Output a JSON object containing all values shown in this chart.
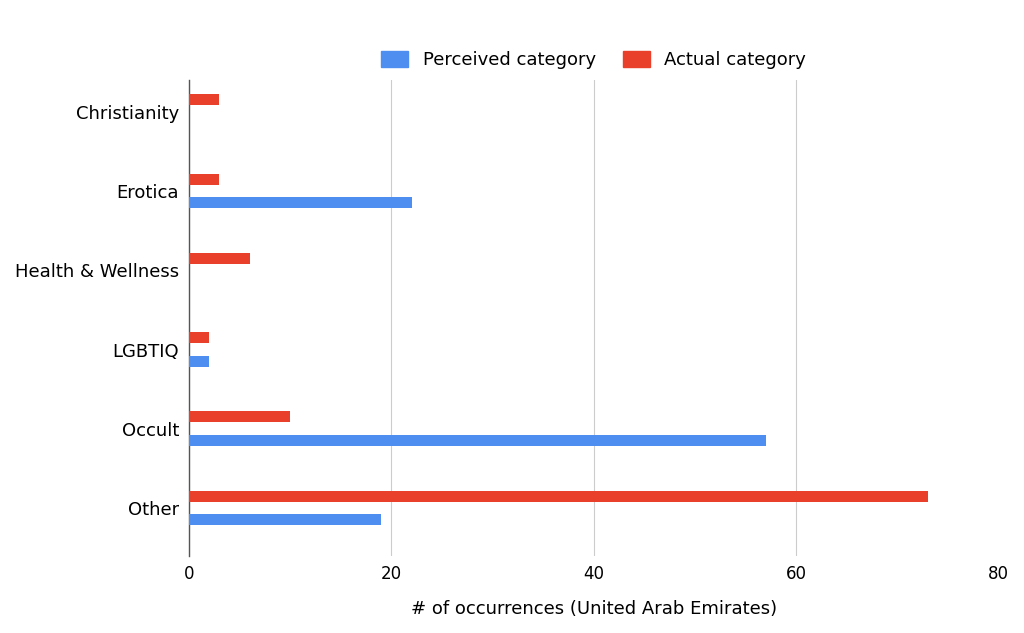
{
  "categories": [
    "Christianity",
    "Erotica",
    "Health & Wellness",
    "LGBTIQ",
    "Occult",
    "Other"
  ],
  "perceived": [
    0,
    22,
    0,
    2,
    57,
    19
  ],
  "actual": [
    3,
    3,
    6,
    2,
    10,
    73
  ],
  "perceived_color": "#4d8ef0",
  "actual_color": "#e8402a",
  "xlabel": "# of occurrences (United Arab Emirates)",
  "legend_perceived": "Perceived category",
  "legend_actual": "Actual category",
  "xlim": [
    0,
    80
  ],
  "xticks": [
    0,
    20,
    40,
    60,
    80
  ],
  "background_color": "#ffffff",
  "bar_height": 0.28,
  "figsize": [
    10.24,
    6.33
  ],
  "dpi": 100
}
